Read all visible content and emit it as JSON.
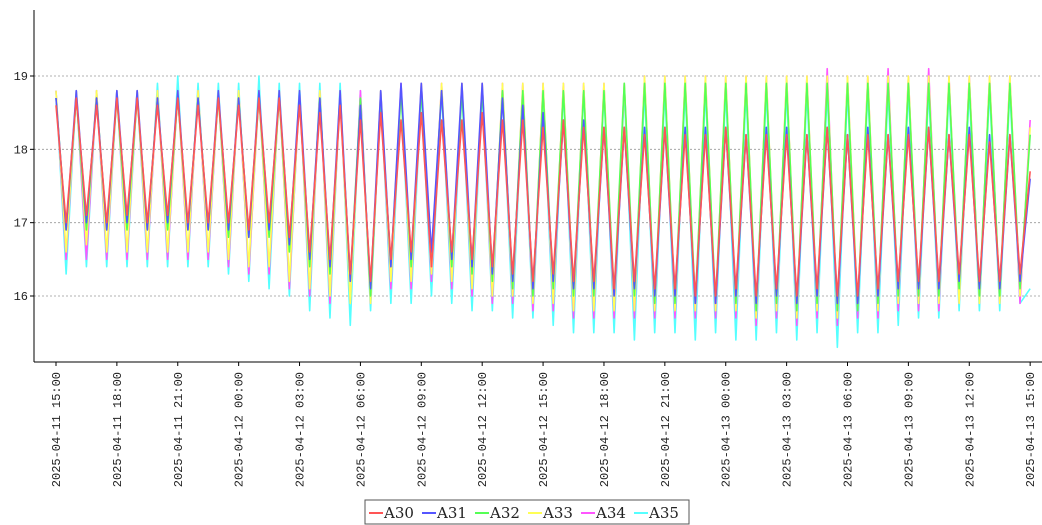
{
  "chart_data": {
    "type": "line",
    "x": [
      "2025-04-11 15:00",
      "2025-04-11 15:30",
      "2025-04-11 16:00",
      "2025-04-11 16:30",
      "2025-04-11 17:00",
      "2025-04-11 17:30",
      "2025-04-11 18:00",
      "2025-04-11 18:30",
      "2025-04-11 19:00",
      "2025-04-11 19:30",
      "2025-04-11 20:00",
      "2025-04-11 20:30",
      "2025-04-11 21:00",
      "2025-04-11 21:30",
      "2025-04-11 22:00",
      "2025-04-11 22:30",
      "2025-04-11 23:00",
      "2025-04-11 23:30",
      "2025-04-12 00:00",
      "2025-04-12 00:30",
      "2025-04-12 01:00",
      "2025-04-12 01:30",
      "2025-04-12 02:00",
      "2025-04-12 02:30",
      "2025-04-12 03:00",
      "2025-04-12 03:30",
      "2025-04-12 04:00",
      "2025-04-12 04:30",
      "2025-04-12 05:00",
      "2025-04-12 05:30",
      "2025-04-12 06:00",
      "2025-04-12 06:30",
      "2025-04-12 07:00",
      "2025-04-12 07:30",
      "2025-04-12 08:00",
      "2025-04-12 08:30",
      "2025-04-12 09:00",
      "2025-04-12 09:30",
      "2025-04-12 10:00",
      "2025-04-12 10:30",
      "2025-04-12 11:00",
      "2025-04-12 11:30",
      "2025-04-12 12:00",
      "2025-04-12 12:30",
      "2025-04-12 13:00",
      "2025-04-12 13:30",
      "2025-04-12 14:00",
      "2025-04-12 14:30",
      "2025-04-12 15:00",
      "2025-04-12 15:30",
      "2025-04-12 16:00",
      "2025-04-12 16:30",
      "2025-04-12 17:00",
      "2025-04-12 17:30",
      "2025-04-12 18:00",
      "2025-04-12 18:30",
      "2025-04-12 19:00",
      "2025-04-12 19:30",
      "2025-04-12 20:00",
      "2025-04-12 20:30",
      "2025-04-12 21:00",
      "2025-04-12 21:30",
      "2025-04-12 22:00",
      "2025-04-12 22:30",
      "2025-04-12 23:00",
      "2025-04-12 23:30",
      "2025-04-13 00:00",
      "2025-04-13 00:30",
      "2025-04-13 01:00",
      "2025-04-13 01:30",
      "2025-04-13 02:00",
      "2025-04-13 02:30",
      "2025-04-13 03:00",
      "2025-04-13 03:30",
      "2025-04-13 04:00",
      "2025-04-13 04:30",
      "2025-04-13 05:00",
      "2025-04-13 05:30",
      "2025-04-13 06:00",
      "2025-04-13 06:30",
      "2025-04-13 07:00",
      "2025-04-13 07:30",
      "2025-04-13 08:00",
      "2025-04-13 08:30",
      "2025-04-13 09:00",
      "2025-04-13 09:30",
      "2025-04-13 10:00",
      "2025-04-13 10:30",
      "2025-04-13 11:00",
      "2025-04-13 11:30",
      "2025-04-13 12:00",
      "2025-04-13 12:30",
      "2025-04-13 13:00",
      "2025-04-13 13:30",
      "2025-04-13 14:00",
      "2025-04-13 14:30",
      "2025-04-13 15:00"
    ],
    "series": [
      {
        "name": "A30",
        "color": "#ff5555",
        "values": [
          18.6,
          17.0,
          18.7,
          17.1,
          18.6,
          17.0,
          18.7,
          17.1,
          18.7,
          17.0,
          18.6,
          17.1,
          18.7,
          17.0,
          18.6,
          17.0,
          18.7,
          17.0,
          18.6,
          16.9,
          18.7,
          17.0,
          18.7,
          16.8,
          18.6,
          16.6,
          18.5,
          16.5,
          18.6,
          16.3,
          18.4,
          16.2,
          18.5,
          16.5,
          18.4,
          16.6,
          18.5,
          16.4,
          18.4,
          16.6,
          18.4,
          16.5,
          18.5,
          16.4,
          18.4,
          16.3,
          18.4,
          16.2,
          18.3,
          16.3,
          18.4,
          16.2,
          18.3,
          16.2,
          18.3,
          16.1,
          18.3,
          16.2,
          18.2,
          16.1,
          18.3,
          16.1,
          18.2,
          16.0,
          18.2,
          16.0,
          18.3,
          16.1,
          18.2,
          16.0,
          18.2,
          16.1,
          18.2,
          16.0,
          18.2,
          16.1,
          18.3,
          16.0,
          18.2,
          16.0,
          18.2,
          16.1,
          18.2,
          16.2,
          18.2,
          16.2,
          18.3,
          16.2,
          18.2,
          16.3,
          18.2,
          16.2,
          18.1,
          16.2,
          18.2,
          16.3,
          17.7
        ]
      },
      {
        "name": "A31",
        "color": "#5555ff",
        "values": [
          18.7,
          16.9,
          18.8,
          17.0,
          18.7,
          16.9,
          18.8,
          17.0,
          18.8,
          16.9,
          18.7,
          17.0,
          18.8,
          16.9,
          18.7,
          16.9,
          18.8,
          16.9,
          18.7,
          16.8,
          18.8,
          16.9,
          18.8,
          16.7,
          18.8,
          16.5,
          18.7,
          16.4,
          18.8,
          16.2,
          18.6,
          16.1,
          18.8,
          16.4,
          18.9,
          16.5,
          18.9,
          16.6,
          18.8,
          16.5,
          18.9,
          16.4,
          18.9,
          16.3,
          18.7,
          16.2,
          18.6,
          16.1,
          18.5,
          16.2,
          18.4,
          16.1,
          18.4,
          16.1,
          18.3,
          16.0,
          18.3,
          16.1,
          18.3,
          16.0,
          18.3,
          16.0,
          18.3,
          15.9,
          18.3,
          15.9,
          18.3,
          16.0,
          18.2,
          15.9,
          18.3,
          16.0,
          18.3,
          15.9,
          18.2,
          16.0,
          18.3,
          15.9,
          18.2,
          15.9,
          18.3,
          16.0,
          18.2,
          16.1,
          18.3,
          16.1,
          18.3,
          16.1,
          18.2,
          16.2,
          18.3,
          16.1,
          18.2,
          16.1,
          18.2,
          16.2,
          17.6
        ]
      },
      {
        "name": "A32",
        "color": "#55ff55",
        "values": [
          18.7,
          16.9,
          18.7,
          16.9,
          18.7,
          16.9,
          18.7,
          16.9,
          18.7,
          16.9,
          18.7,
          16.9,
          18.7,
          16.9,
          18.7,
          16.9,
          18.7,
          16.8,
          18.7,
          16.8,
          18.7,
          16.8,
          18.7,
          16.6,
          18.7,
          16.4,
          18.7,
          16.3,
          18.7,
          16.2,
          18.7,
          16.0,
          18.7,
          16.4,
          18.8,
          16.4,
          18.8,
          16.5,
          18.8,
          16.4,
          18.8,
          16.3,
          18.8,
          16.2,
          18.8,
          16.1,
          18.8,
          16.0,
          18.8,
          16.1,
          18.8,
          16.0,
          18.8,
          16.0,
          18.8,
          16.0,
          18.9,
          16.0,
          18.9,
          15.9,
          18.9,
          15.9,
          18.9,
          15.9,
          18.9,
          15.9,
          18.9,
          15.9,
          18.9,
          15.8,
          18.9,
          15.9,
          18.9,
          15.8,
          18.9,
          15.9,
          18.9,
          15.8,
          18.9,
          15.8,
          18.9,
          15.9,
          18.9,
          16.0,
          18.9,
          16.0,
          18.9,
          16.0,
          18.9,
          16.1,
          18.9,
          16.0,
          18.9,
          16.0,
          18.9,
          16.1,
          18.2
        ]
      },
      {
        "name": "A33",
        "color": "#ffff55",
        "values": [
          18.8,
          16.6,
          18.8,
          16.7,
          18.8,
          16.6,
          18.8,
          16.6,
          18.8,
          16.6,
          18.8,
          16.6,
          18.8,
          16.6,
          18.8,
          16.6,
          18.8,
          16.5,
          18.8,
          16.4,
          18.8,
          16.4,
          18.8,
          16.2,
          18.8,
          16.1,
          18.8,
          16.0,
          18.8,
          15.9,
          18.7,
          15.9,
          18.8,
          16.2,
          18.8,
          16.2,
          18.9,
          16.3,
          18.9,
          16.2,
          18.9,
          16.1,
          18.9,
          16.0,
          18.9,
          16.0,
          18.9,
          15.9,
          18.9,
          15.9,
          18.9,
          15.8,
          18.9,
          15.8,
          18.9,
          15.8,
          18.9,
          15.8,
          19.0,
          15.8,
          19.0,
          15.8,
          19.0,
          15.8,
          19.0,
          15.8,
          19.0,
          15.8,
          19.0,
          15.7,
          19.0,
          15.8,
          19.0,
          15.7,
          19.0,
          15.8,
          19.0,
          15.7,
          19.0,
          15.8,
          19.0,
          15.8,
          19.0,
          15.9,
          19.0,
          15.9,
          19.0,
          15.9,
          19.0,
          15.9,
          19.0,
          15.9,
          19.0,
          15.9,
          19.0,
          16.0,
          18.3
        ]
      },
      {
        "name": "A34",
        "color": "#ff55ff",
        "values": [
          18.8,
          16.5,
          18.8,
          16.5,
          18.8,
          16.5,
          18.8,
          16.5,
          18.8,
          16.5,
          18.8,
          16.5,
          18.8,
          16.5,
          18.8,
          16.5,
          18.8,
          16.4,
          18.8,
          16.3,
          18.8,
          16.3,
          18.8,
          16.1,
          18.8,
          16.0,
          18.8,
          15.9,
          18.8,
          15.9,
          18.8,
          15.9,
          18.8,
          16.1,
          18.9,
          16.1,
          18.9,
          16.2,
          18.9,
          16.1,
          18.9,
          16.0,
          18.9,
          15.9,
          18.9,
          15.9,
          18.9,
          15.8,
          18.9,
          15.8,
          18.9,
          15.7,
          18.9,
          15.7,
          18.9,
          15.7,
          18.9,
          15.7,
          19.0,
          15.7,
          19.0,
          15.7,
          19.0,
          15.7,
          19.0,
          15.7,
          19.0,
          15.7,
          19.0,
          15.6,
          19.0,
          15.7,
          19.0,
          15.6,
          19.0,
          15.7,
          19.1,
          15.6,
          19.0,
          15.7,
          19.0,
          15.7,
          19.1,
          15.8,
          19.0,
          15.8,
          19.1,
          15.8,
          19.0,
          15.9,
          19.0,
          15.9,
          19.0,
          15.9,
          19.0,
          15.9,
          18.4
        ]
      },
      {
        "name": "A35",
        "color": "#55ffff",
        "values": [
          18.8,
          16.3,
          18.8,
          16.4,
          18.8,
          16.4,
          18.8,
          16.4,
          18.8,
          16.4,
          18.9,
          16.4,
          19.0,
          16.4,
          18.9,
          16.4,
          18.9,
          16.3,
          18.9,
          16.2,
          19.0,
          16.1,
          18.9,
          16.0,
          18.9,
          15.8,
          18.9,
          15.7,
          18.9,
          15.6,
          18.8,
          15.8,
          18.8,
          15.9,
          18.8,
          15.9,
          18.8,
          16.0,
          18.8,
          15.9,
          18.8,
          15.8,
          18.8,
          15.8,
          18.8,
          15.7,
          18.8,
          15.7,
          18.8,
          15.6,
          18.8,
          15.5,
          18.8,
          15.5,
          18.8,
          15.5,
          18.8,
          15.4,
          18.8,
          15.5,
          18.8,
          15.5,
          18.8,
          15.4,
          18.8,
          15.5,
          18.8,
          15.4,
          18.8,
          15.4,
          18.8,
          15.5,
          18.8,
          15.4,
          18.8,
          15.5,
          18.8,
          15.3,
          18.8,
          15.5,
          18.8,
          15.5,
          18.8,
          15.6,
          18.8,
          15.7,
          18.8,
          15.7,
          18.8,
          15.8,
          18.8,
          15.8,
          18.8,
          15.8,
          18.8,
          15.9,
          16.1
        ]
      }
    ],
    "xlim": [
      "2025-04-11 13:55",
      "2025-04-13 15:35"
    ],
    "xticks": [
      "2025-04-11 15:00",
      "2025-04-11 18:00",
      "2025-04-11 21:00",
      "2025-04-12 00:00",
      "2025-04-12 03:00",
      "2025-04-12 06:00",
      "2025-04-12 09:00",
      "2025-04-12 12:00",
      "2025-04-12 15:00",
      "2025-04-12 18:00",
      "2025-04-12 21:00",
      "2025-04-13 00:00",
      "2025-04-13 03:00",
      "2025-04-13 06:00",
      "2025-04-13 09:00",
      "2025-04-13 12:00",
      "2025-04-13 15:00"
    ],
    "ylim": [
      15.1,
      19.9
    ],
    "yticks": [
      16,
      17,
      18,
      19
    ],
    "grid": true,
    "legend": "bottom"
  }
}
